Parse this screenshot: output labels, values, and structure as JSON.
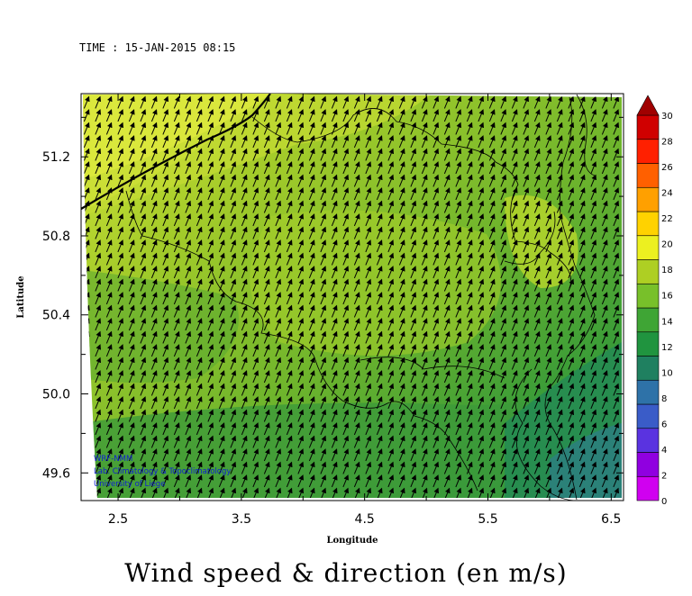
{
  "header": {
    "time": "TIME : 15-JAN-2015 08:15"
  },
  "title": "Wind speed & direction (en m/s)",
  "map": {
    "xlabel": "Longitude",
    "ylabel": "Latitude",
    "xlim": [
      2.2,
      6.6
    ],
    "ylim": [
      49.46,
      51.52
    ],
    "x_ticks": [
      "2.5",
      "3.5",
      "4.5",
      "5.5",
      "6.5"
    ],
    "y_ticks": [
      "49.6",
      "50.0",
      "50.4",
      "50.8",
      "51.2"
    ],
    "wind_direction": "from south-west",
    "credits": [
      "WRF-NMM",
      "Lab. Climatology & Topoclimatology",
      "University of Liege"
    ]
  },
  "colorbar": {
    "labels": [
      "0",
      "2",
      "4",
      "6",
      "8",
      "10",
      "12",
      "14",
      "16",
      "18",
      "20",
      "22",
      "24",
      "26",
      "28",
      "30"
    ],
    "colors": [
      "#d000f0",
      "#9000e0",
      "#5a33e0",
      "#3a5cc8",
      "#2e72a8",
      "#1f8060",
      "#20943f",
      "#3fa535",
      "#78c02a",
      "#aecf23",
      "#ecf020",
      "#ffd200",
      "#ffa000",
      "#ff6000",
      "#ff2000",
      "#d00000"
    ]
  }
}
